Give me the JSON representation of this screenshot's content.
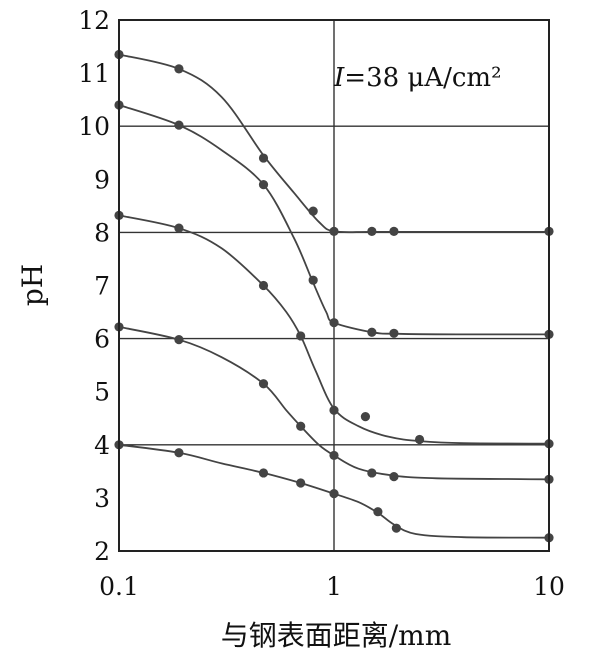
{
  "chart_data": {
    "type": "line",
    "xscale": "log",
    "xlim": [
      0.1,
      10
    ],
    "ylim": [
      2,
      12
    ],
    "grid": "horizontal at even pH and vertical at x=1",
    "xticks": [
      {
        "value": 0.1,
        "label": "0.1"
      },
      {
        "value": 1,
        "label": "1"
      },
      {
        "value": 10,
        "label": "10"
      }
    ],
    "yticks": [
      {
        "value": 2,
        "label": "2"
      },
      {
        "value": 3,
        "label": "3"
      },
      {
        "value": 4,
        "label": "4"
      },
      {
        "value": 5,
        "label": "5"
      },
      {
        "value": 6,
        "label": "6"
      },
      {
        "value": 7,
        "label": "7"
      },
      {
        "value": 8,
        "label": "8"
      },
      {
        "value": 9,
        "label": "9"
      },
      {
        "value": 10,
        "label": "10"
      },
      {
        "value": 11,
        "label": "11"
      },
      {
        "value": 12,
        "label": "12"
      }
    ],
    "xlabel": "与钢表面距离/mm",
    "ylabel": "pH",
    "annotation": {
      "italic": "I",
      "text": "=38 μA/cm²"
    },
    "series": [
      {
        "points": [
          [
            0.1,
            11.35
          ],
          [
            0.19,
            11.08
          ],
          [
            0.47,
            9.4
          ],
          [
            0.8,
            8.4
          ],
          [
            1.0,
            8.02
          ],
          [
            1.5,
            8.02
          ],
          [
            1.9,
            8.02
          ],
          [
            10,
            8.02
          ]
        ],
        "curve": [
          [
            0.1,
            11.35
          ],
          [
            0.19,
            11.08
          ],
          [
            0.3,
            10.55
          ],
          [
            0.47,
            9.45
          ],
          [
            0.65,
            8.75
          ],
          [
            0.85,
            8.2
          ],
          [
            1.0,
            8.02
          ],
          [
            1.5,
            8.01
          ],
          [
            3,
            8.01
          ],
          [
            10,
            8.01
          ]
        ]
      },
      {
        "points": [
          [
            0.1,
            10.4
          ],
          [
            0.19,
            10.02
          ],
          [
            0.47,
            8.9
          ],
          [
            0.8,
            7.1
          ],
          [
            1.0,
            6.3
          ],
          [
            1.5,
            6.12
          ],
          [
            1.9,
            6.1
          ],
          [
            10,
            6.08
          ]
        ],
        "curve": [
          [
            0.1,
            10.4
          ],
          [
            0.19,
            10.02
          ],
          [
            0.3,
            9.55
          ],
          [
            0.47,
            8.9
          ],
          [
            0.65,
            7.9
          ],
          [
            0.8,
            7.05
          ],
          [
            0.92,
            6.5
          ],
          [
            1.0,
            6.3
          ],
          [
            1.5,
            6.12
          ],
          [
            2,
            6.09
          ],
          [
            4,
            6.08
          ],
          [
            10,
            6.08
          ]
        ]
      },
      {
        "points": [
          [
            0.1,
            8.32
          ],
          [
            0.19,
            8.08
          ],
          [
            0.47,
            7.0
          ],
          [
            0.7,
            6.05
          ],
          [
            1.0,
            4.65
          ],
          [
            1.4,
            4.53
          ],
          [
            2.5,
            4.1
          ],
          [
            10,
            4.02
          ]
        ],
        "curve": [
          [
            0.1,
            8.32
          ],
          [
            0.19,
            8.08
          ],
          [
            0.3,
            7.7
          ],
          [
            0.47,
            7.0
          ],
          [
            0.6,
            6.5
          ],
          [
            0.7,
            6.05
          ],
          [
            0.82,
            5.4
          ],
          [
            1.0,
            4.68
          ],
          [
            1.3,
            4.35
          ],
          [
            1.8,
            4.15
          ],
          [
            2.5,
            4.07
          ],
          [
            4,
            4.03
          ],
          [
            10,
            4.02
          ]
        ]
      },
      {
        "points": [
          [
            0.1,
            6.22
          ],
          [
            0.19,
            5.98
          ],
          [
            0.47,
            5.15
          ],
          [
            0.7,
            4.35
          ],
          [
            1.0,
            3.8
          ],
          [
            1.5,
            3.47
          ],
          [
            1.9,
            3.4
          ],
          [
            10,
            3.35
          ]
        ],
        "curve": [
          [
            0.1,
            6.22
          ],
          [
            0.19,
            5.98
          ],
          [
            0.3,
            5.65
          ],
          [
            0.47,
            5.15
          ],
          [
            0.6,
            4.65
          ],
          [
            0.7,
            4.35
          ],
          [
            0.85,
            4.0
          ],
          [
            1.0,
            3.8
          ],
          [
            1.3,
            3.55
          ],
          [
            1.9,
            3.42
          ],
          [
            3,
            3.37
          ],
          [
            10,
            3.35
          ]
        ]
      },
      {
        "points": [
          [
            0.1,
            4.0
          ],
          [
            0.19,
            3.85
          ],
          [
            0.47,
            3.47
          ],
          [
            0.7,
            3.28
          ],
          [
            1.0,
            3.08
          ],
          [
            1.6,
            2.74
          ],
          [
            1.95,
            2.43
          ],
          [
            10,
            2.25
          ]
        ],
        "curve": [
          [
            0.1,
            4.0
          ],
          [
            0.19,
            3.85
          ],
          [
            0.3,
            3.65
          ],
          [
            0.47,
            3.47
          ],
          [
            0.7,
            3.28
          ],
          [
            1.0,
            3.08
          ],
          [
            1.3,
            2.92
          ],
          [
            1.6,
            2.72
          ],
          [
            1.9,
            2.5
          ],
          [
            2.4,
            2.32
          ],
          [
            4,
            2.26
          ],
          [
            10,
            2.25
          ]
        ]
      }
    ]
  }
}
